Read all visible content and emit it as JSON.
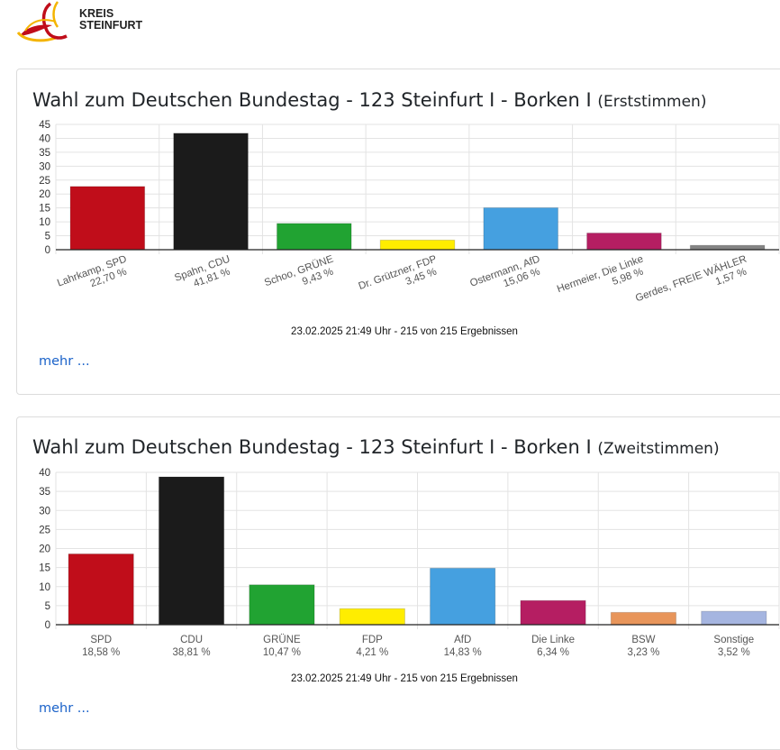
{
  "logo": {
    "line1": "KREIS",
    "line2": "STEINFURT"
  },
  "sections": [
    {
      "title": "Wahl zum Deutschen Bundestag - 123 Steinfurt I - Borken I",
      "kind": "(Erststimmen)",
      "timestamp": "23.02.2025 21:49 Uhr - 215 von 215 Ergebnissen",
      "more_link": "mehr ..."
    },
    {
      "title": "Wahl zum Deutschen Bundestag - 123 Steinfurt I - Borken I",
      "kind": "(Zweitstimmen)",
      "timestamp": "23.02.2025 21:49 Uhr - 215 von 215 Ergebnissen",
      "more_link": "mehr ..."
    }
  ],
  "chart_data": [
    {
      "type": "bar",
      "categories": [
        "Lahrkamp, SPD",
        "Spahn, CDU",
        "Schoo, GRÜNE",
        "Dr. Grützner, FDP",
        "Ostermann, AfD",
        "Hermeier, Die Linke",
        "Gerdes, FREIE WÄHLER"
      ],
      "values": [
        22.7,
        41.81,
        9.43,
        3.45,
        15.06,
        5.98,
        1.57
      ],
      "value_labels": [
        "22,70 %",
        "41,81 %",
        "9,43 %",
        "3,45 %",
        "15,06 %",
        "5,98 %",
        "1,57 %"
      ],
      "colors": [
        "#c00d1a",
        "#1b1b1b",
        "#21a332",
        "#ffed00",
        "#45a0e0",
        "#b51e62",
        "#848484"
      ],
      "yticks": [
        0,
        5,
        10,
        15,
        20,
        25,
        30,
        35,
        40,
        45
      ],
      "ylim": [
        0,
        45
      ],
      "grid": true,
      "rotated_labels": true
    },
    {
      "type": "bar",
      "categories": [
        "SPD",
        "CDU",
        "GRÜNE",
        "FDP",
        "AfD",
        "Die Linke",
        "BSW",
        "Sonstige"
      ],
      "values": [
        18.58,
        38.81,
        10.47,
        4.21,
        14.83,
        6.34,
        3.23,
        3.52
      ],
      "value_labels": [
        "18,58 %",
        "38,81 %",
        "10,47 %",
        "4,21 %",
        "14,83 %",
        "6,34 %",
        "3,23 %",
        "3,52 %"
      ],
      "colors": [
        "#c00d1a",
        "#1b1b1b",
        "#21a332",
        "#ffed00",
        "#45a0e0",
        "#b51e62",
        "#e8955a",
        "#a5b5e0"
      ],
      "yticks": [
        0,
        5,
        10,
        15,
        20,
        25,
        30,
        35,
        40
      ],
      "ylim": [
        0,
        40
      ],
      "grid": true,
      "rotated_labels": false
    }
  ]
}
